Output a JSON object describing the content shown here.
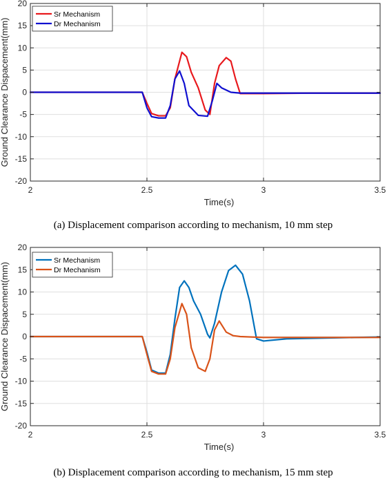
{
  "chart_data": [
    {
      "type": "line",
      "caption": "(a) Displacement comparison according to mechanism, 10 mm step",
      "xlabel": "Time(s)",
      "ylabel": "Ground Clearance Dispacement(mm)",
      "xlim": [
        2,
        3.5
      ],
      "ylim": [
        -20,
        20
      ],
      "xticks": [
        "2",
        "2.5",
        "3",
        "3.5"
      ],
      "yticks": [
        "20",
        "15",
        "10",
        "5",
        "0",
        "-5",
        "-10",
        "-15",
        "-20"
      ],
      "grid": true,
      "legend": "top-left",
      "series": [
        {
          "name": "Sr Mechanism",
          "color": "#e8191d",
          "x": [
            2.0,
            2.2,
            2.48,
            2.5,
            2.52,
            2.55,
            2.58,
            2.6,
            2.62,
            2.65,
            2.67,
            2.69,
            2.72,
            2.75,
            2.77,
            2.79,
            2.81,
            2.84,
            2.86,
            2.88,
            2.9,
            3.0,
            3.2,
            3.5
          ],
          "y": [
            0.0,
            0.0,
            0.0,
            -2.5,
            -4.8,
            -5.3,
            -5.3,
            -3.5,
            3.0,
            9.0,
            8.0,
            4.5,
            1.0,
            -4.0,
            -5.0,
            2.0,
            6.0,
            7.8,
            7.0,
            3.0,
            -0.3,
            -0.3,
            -0.2,
            -0.2
          ]
        },
        {
          "name": "Dr Mechanism",
          "color": "#1010d0",
          "x": [
            2.0,
            2.2,
            2.48,
            2.5,
            2.52,
            2.55,
            2.58,
            2.6,
            2.62,
            2.64,
            2.66,
            2.68,
            2.72,
            2.76,
            2.78,
            2.8,
            2.82,
            2.86,
            2.9,
            3.0,
            3.5
          ],
          "y": [
            0.0,
            0.0,
            0.0,
            -3.5,
            -5.5,
            -5.8,
            -5.8,
            -3.0,
            3.0,
            4.8,
            2.0,
            -3.0,
            -5.2,
            -5.4,
            -2.0,
            2.0,
            1.0,
            0.0,
            -0.2,
            -0.2,
            -0.2
          ]
        }
      ]
    },
    {
      "type": "line",
      "caption": "(b) Displacement comparison according to mechanism, 15 mm step",
      "xlabel": "Time(s)",
      "ylabel": "Ground Clearance Dispacement(mm)",
      "xlim": [
        2,
        3.5
      ],
      "ylim": [
        -20,
        20
      ],
      "xticks": [
        "2",
        "2.5",
        "3",
        "3.5"
      ],
      "yticks": [
        "20",
        "15",
        "10",
        "5",
        "0",
        "-5",
        "-10",
        "-15",
        "-20"
      ],
      "grid": true,
      "legend": "top-left",
      "series": [
        {
          "name": "Sr Mechanism",
          "color": "#0072bd",
          "x": [
            2.0,
            2.2,
            2.48,
            2.5,
            2.52,
            2.55,
            2.58,
            2.6,
            2.62,
            2.64,
            2.66,
            2.68,
            2.7,
            2.73,
            2.76,
            2.77,
            2.79,
            2.82,
            2.85,
            2.88,
            2.91,
            2.94,
            2.97,
            3.0,
            3.1,
            3.5
          ],
          "y": [
            0.0,
            0.0,
            0.0,
            -3.5,
            -7.5,
            -8.2,
            -8.2,
            -4.0,
            4.0,
            11.0,
            12.5,
            11.0,
            8.0,
            5.0,
            0.5,
            -0.3,
            3.0,
            10.0,
            14.8,
            16.0,
            14.0,
            8.0,
            -0.5,
            -1.0,
            -0.5,
            -0.1
          ]
        },
        {
          "name": "Dr Mechanism",
          "color": "#d95319",
          "x": [
            2.0,
            2.2,
            2.48,
            2.5,
            2.52,
            2.55,
            2.58,
            2.6,
            2.62,
            2.65,
            2.67,
            2.69,
            2.72,
            2.75,
            2.77,
            2.79,
            2.81,
            2.84,
            2.87,
            2.9,
            3.0,
            3.5
          ],
          "y": [
            0.0,
            0.0,
            0.0,
            -4.0,
            -7.8,
            -8.4,
            -8.4,
            -5.0,
            2.0,
            7.4,
            5.0,
            -2.5,
            -7.0,
            -7.8,
            -5.0,
            1.5,
            3.5,
            1.0,
            0.2,
            0.0,
            -0.2,
            -0.2
          ]
        }
      ]
    }
  ]
}
